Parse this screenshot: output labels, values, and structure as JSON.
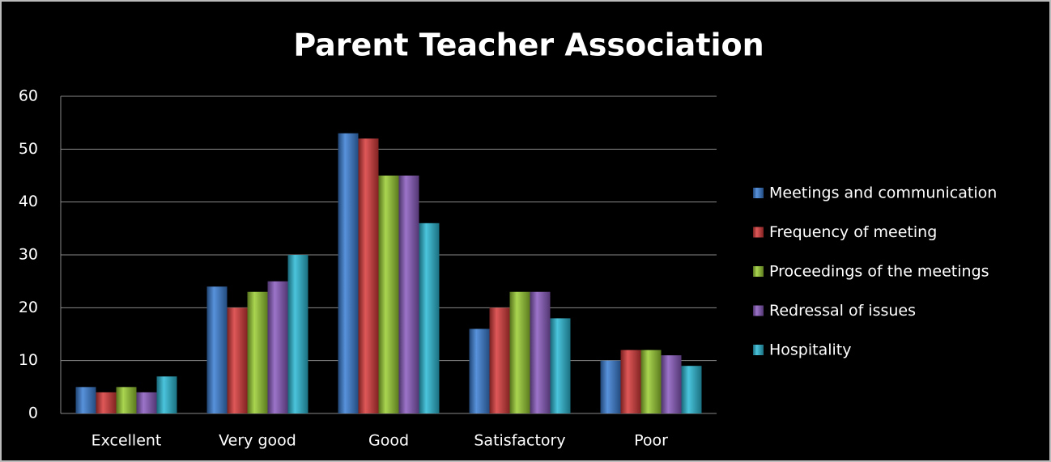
{
  "chart_data": {
    "type": "bar",
    "title": "Parent Teacher Association",
    "categories": [
      "Excellent",
      "Very good",
      "Good",
      "Satisfactory",
      "Poor"
    ],
    "series": [
      {
        "name": "Meetings and communication",
        "color": "#3a7fd5",
        "values": [
          5,
          24,
          53,
          16,
          10
        ]
      },
      {
        "name": "Frequency of meeting",
        "color": "#d93a3a",
        "values": [
          4,
          20,
          52,
          20,
          12
        ]
      },
      {
        "name": "Proceedings of the meetings",
        "color": "#9acd32",
        "values": [
          5,
          23,
          45,
          23,
          12
        ]
      },
      {
        "name": "Redressal of issues",
        "color": "#8a5cc0",
        "values": [
          4,
          25,
          45,
          23,
          11
        ]
      },
      {
        "name": "Hospitality",
        "color": "#2bbad6",
        "values": [
          7,
          30,
          36,
          18,
          9
        ]
      }
    ],
    "ylim": [
      0,
      60
    ],
    "yticks": [
      0,
      10,
      20,
      30,
      40,
      50,
      60
    ],
    "grid": true,
    "legend": "right"
  }
}
